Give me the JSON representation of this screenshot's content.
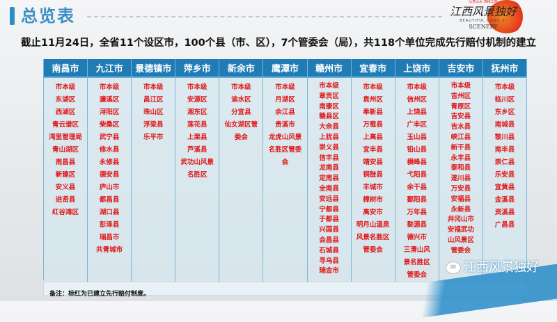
{
  "header": {
    "title": "总览表",
    "logo": {
      "text": "江西风景独好",
      "en1": "BEAUTIFUL JIANG XI",
      "en2": "SCENERY",
      "tagline": "写意山水 锦绣江西"
    }
  },
  "subtitle": "截止11月24日，全省11个设区市，100个县（市、区），7个管委会（局），共118个单位完成先行赔付机制的建立",
  "colors": {
    "header_bg": "#1f7cb5",
    "item_text": "#e01818",
    "title": "#3a8fc6"
  },
  "columns": [
    {
      "city": "南昌市",
      "items": [
        "市本级",
        "东湖区",
        "西湖区",
        "青云谱区",
        "湾里管理局",
        "青山湖区",
        "南昌县",
        "新建区",
        "安义县",
        "进贤县",
        "红谷滩区"
      ]
    },
    {
      "city": "九江市",
      "items": [
        "市本级",
        "濂溪区",
        "浔阳区",
        "柴桑区",
        "武宁县",
        "修水县",
        "永修县",
        "德安县",
        "庐山市",
        "都昌县",
        "湖口县",
        "彭泽县",
        "瑞昌市",
        "共青城市"
      ]
    },
    {
      "city": "景德镇市",
      "items": [
        "市本级",
        "昌江区",
        "珠山区",
        "浮梁县",
        "乐平市"
      ]
    },
    {
      "city": "萍乡市",
      "items": [
        "市本级",
        "安源区",
        "湘东区",
        "莲花县",
        "上栗县",
        "芦溪县",
        "武功山风景",
        "名胜区"
      ]
    },
    {
      "city": "新余市",
      "items": [
        "市本级",
        "渝水区",
        "分宜县",
        "仙女湖区管",
        "委会"
      ]
    },
    {
      "city": "鹰潭市",
      "items": [
        "市本级",
        "月湖区",
        "余江县",
        "贵溪市",
        "龙虎山风景",
        "名胜区管委",
        "会"
      ]
    },
    {
      "city": "赣州市",
      "items": [
        "市本级",
        "章贡区",
        "南康区",
        "赣县区",
        "大余县",
        "上犹县",
        "崇义县",
        "信丰县",
        "龙南县",
        "定南县",
        "全南县",
        "安远县",
        "宁都县",
        "于都县",
        "兴国县",
        "会昌县",
        "石城县",
        "寻乌县",
        "瑞金市"
      ]
    },
    {
      "city": "宜春市",
      "items": [
        "市本级",
        "袁州区",
        "奉新县",
        "万载县",
        "上高县",
        "宜丰县",
        "靖安县",
        "铜鼓县",
        "丰城市",
        "樟树市",
        "高安市",
        "明月山温泉",
        "风景名胜区",
        "管委会"
      ]
    },
    {
      "city": "上饶市",
      "items": [
        "市本级",
        "信州区",
        "上饶县",
        "广丰区",
        "玉山县",
        "铅山县",
        "横峰县",
        "弋阳县",
        "余干县",
        "鄱阳县",
        "万年县",
        "婺源县",
        "德兴市",
        "三清山风",
        "景名胜区",
        "管委会"
      ]
    },
    {
      "city": "吉安市",
      "items": [
        "市本级",
        "吉州区",
        "青原区",
        "吉安县",
        "吉水县",
        "峡江县",
        "新干县",
        "永丰县",
        "泰和县",
        "遂川县",
        "万安县",
        "安福县",
        "永新县",
        "井冈山市",
        "安福武功",
        "山风景区",
        "管委会"
      ]
    },
    {
      "city": "抚州市",
      "items": [
        "市本级",
        "临川区",
        "东乡区",
        "南城县",
        "黎川县",
        "南丰县",
        "崇仁县",
        "乐安县",
        "宜黄县",
        "金溪县",
        "资溪县",
        "广昌县"
      ]
    }
  ],
  "note": "备注：标红为已建立先行赔付制度。",
  "watermark": "江西风景独好"
}
